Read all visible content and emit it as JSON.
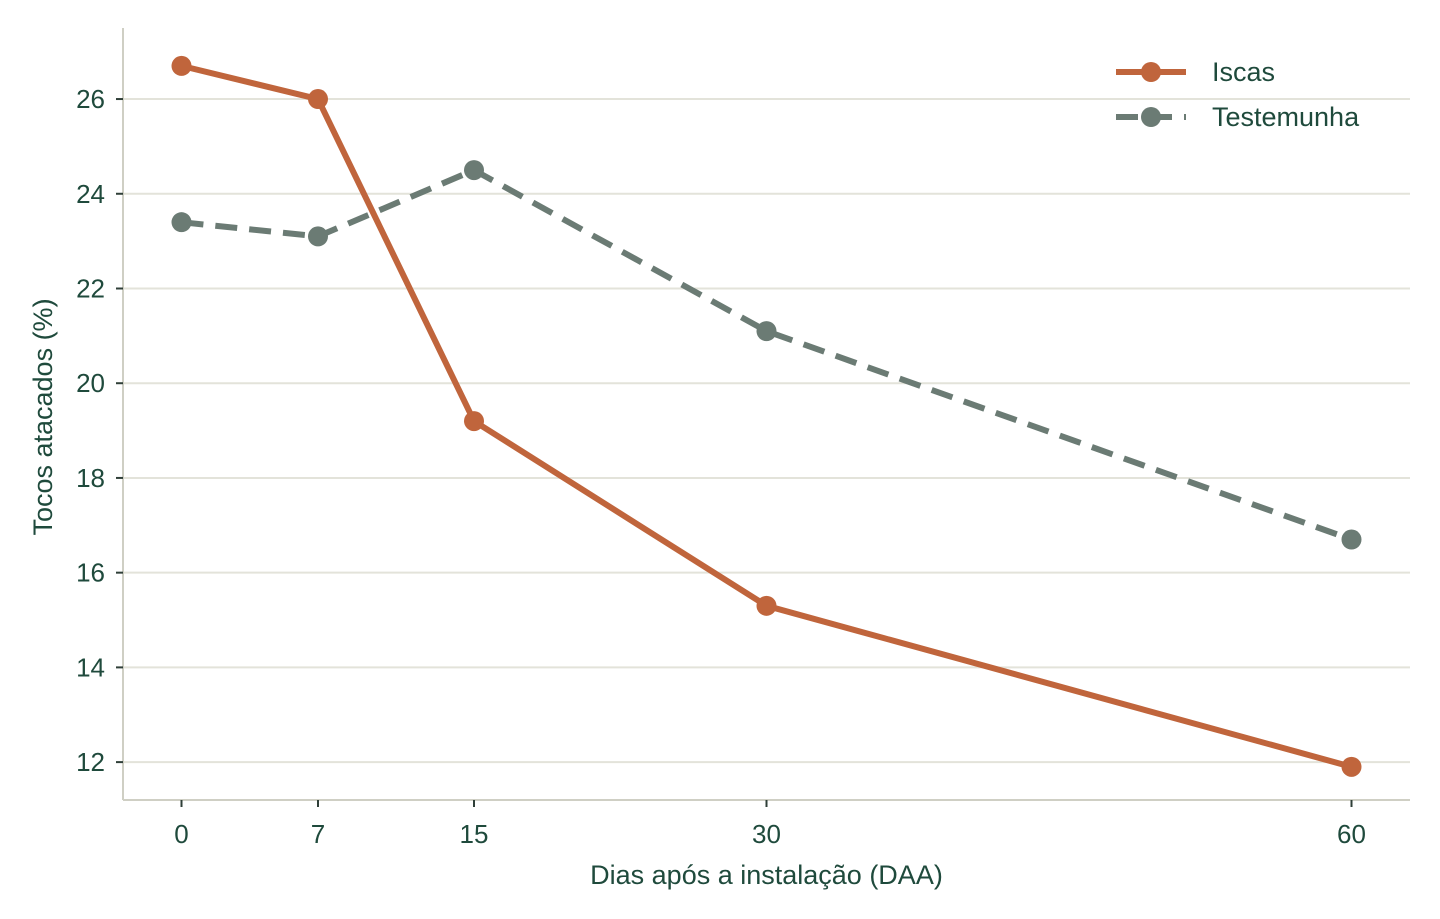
{
  "chart_data": {
    "type": "line",
    "title": "",
    "xlabel": "Dias após a instalação (DAA)",
    "ylabel": "Tocos atacados (%)",
    "x": [
      0,
      7,
      15,
      30,
      60
    ],
    "x_tick_labels": [
      "0",
      "7",
      "15",
      "30",
      "60"
    ],
    "y_ticks": [
      12,
      14,
      16,
      18,
      20,
      22,
      24,
      26
    ],
    "xlim": [
      -3,
      63
    ],
    "ylim": [
      11.2,
      27.5
    ],
    "grid": "horizontal",
    "legend_position": "top-right",
    "series": [
      {
        "name": "Iscas",
        "values": [
          26.7,
          26.0,
          19.2,
          15.3,
          11.9
        ],
        "color": "#c0653c",
        "style": "solid",
        "marker": "circle"
      },
      {
        "name": "Testemunha",
        "values": [
          23.4,
          23.1,
          24.5,
          21.1,
          16.7
        ],
        "color": "#6b7b74",
        "style": "dashed",
        "marker": "circle"
      }
    ],
    "colors": {
      "axis": "#cfcfc4",
      "grid": "#e3e3da",
      "text": "#1f4a3c"
    }
  }
}
